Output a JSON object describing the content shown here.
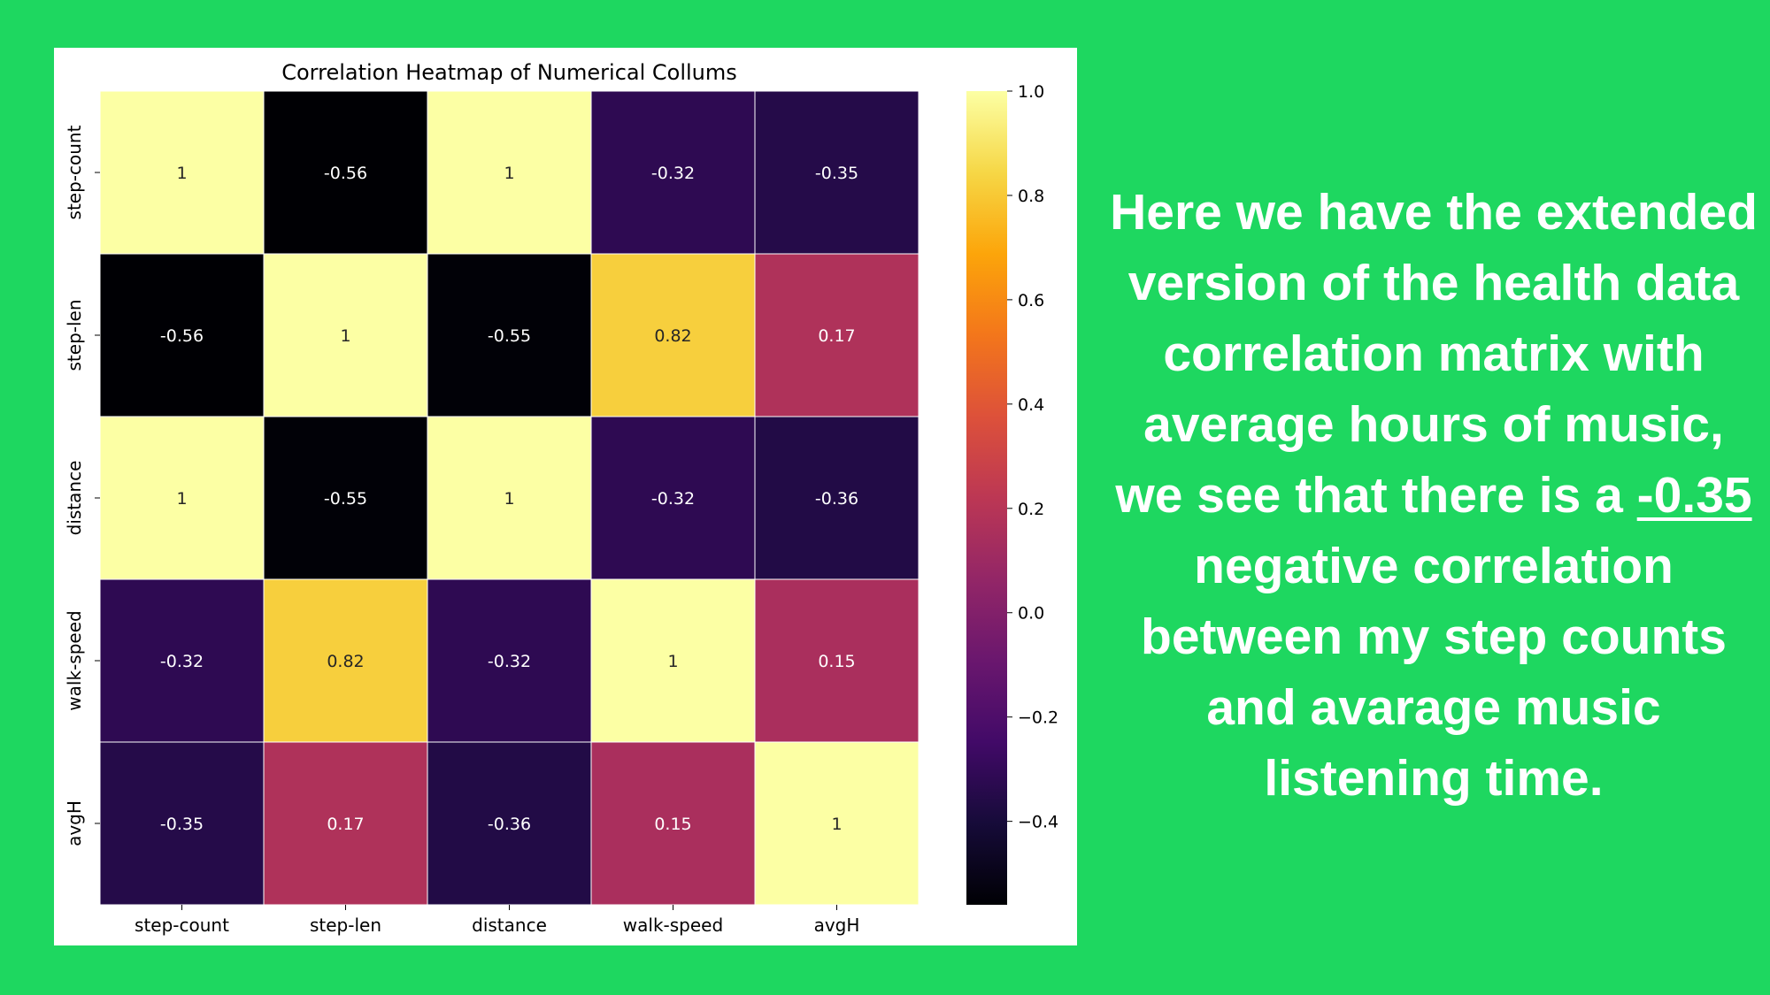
{
  "chart_data": {
    "type": "heatmap",
    "title": "Correlation Heatmap of Numerical Collums",
    "x_labels": [
      "step-count",
      "step-len",
      "distance",
      "walk-speed",
      "avgH"
    ],
    "y_labels": [
      "step-count",
      "step-len",
      "distance",
      "walk-speed",
      "avgH"
    ],
    "values": [
      [
        1,
        -0.56,
        1,
        -0.32,
        -0.35
      ],
      [
        -0.56,
        1,
        -0.55,
        0.82,
        0.17
      ],
      [
        1,
        -0.55,
        1,
        -0.32,
        -0.36
      ],
      [
        -0.32,
        0.82,
        -0.32,
        1,
        0.15
      ],
      [
        -0.35,
        0.17,
        -0.36,
        0.15,
        1
      ]
    ],
    "annotations": [
      [
        "1",
        "-0.56",
        "1",
        "-0.32",
        "-0.35"
      ],
      [
        "-0.56",
        "1",
        "-0.55",
        "0.82",
        "0.17"
      ],
      [
        "1",
        "-0.55",
        "1",
        "-0.32",
        "-0.36"
      ],
      [
        "-0.32",
        "0.82",
        "-0.32",
        "1",
        "0.15"
      ],
      [
        "-0.35",
        "0.17",
        "-0.36",
        "0.15",
        "1"
      ]
    ],
    "colormap": "inferno",
    "vmin": -0.56,
    "vmax": 1.0,
    "colorbar_ticks": [
      1.0,
      0.8,
      0.6,
      0.4,
      0.2,
      0.0,
      -0.2,
      -0.4
    ],
    "colorbar_tick_labels": [
      "1.0",
      "0.8",
      "0.6",
      "0.4",
      "0.2",
      "0.0",
      "−0.2",
      "−0.4"
    ],
    "colorbar_position": "right"
  },
  "caption": {
    "before": "Here we have the extended version of the health data correlation matrix with average hours of music, we see that there is a ",
    "highlight": "-0.35",
    "after": " negative correlation between my step counts and avarage music listening time."
  },
  "colors": {
    "background": "#1ed760",
    "caption_text": "#ffffff"
  }
}
